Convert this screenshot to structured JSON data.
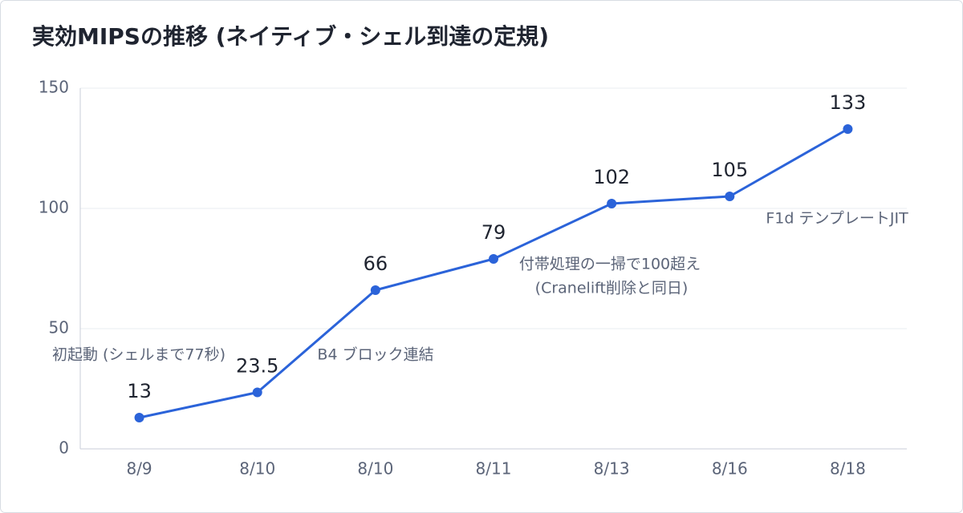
{
  "chart_data": {
    "type": "line",
    "title": "実効MIPSの推移 (ネイティブ・シェル到達の定規)",
    "categories": [
      "8/9",
      "8/10",
      "8/10",
      "8/11",
      "8/13",
      "8/16",
      "8/18"
    ],
    "series": [
      {
        "name": "実効MIPS",
        "color": "#2b63d9",
        "values": [
          13,
          23.5,
          66,
          79,
          102,
          105,
          133
        ]
      }
    ],
    "ylim": [
      0,
      150
    ],
    "yticks": [
      0,
      50,
      100,
      150
    ],
    "grid": true,
    "annotations": [
      "初起動 (シェルまで77秒)",
      "B4 ブロック連結",
      "付帯処理の一掃で100超え",
      "(Cranelift削除と同日)",
      "F1d テンプレートJIT"
    ]
  }
}
